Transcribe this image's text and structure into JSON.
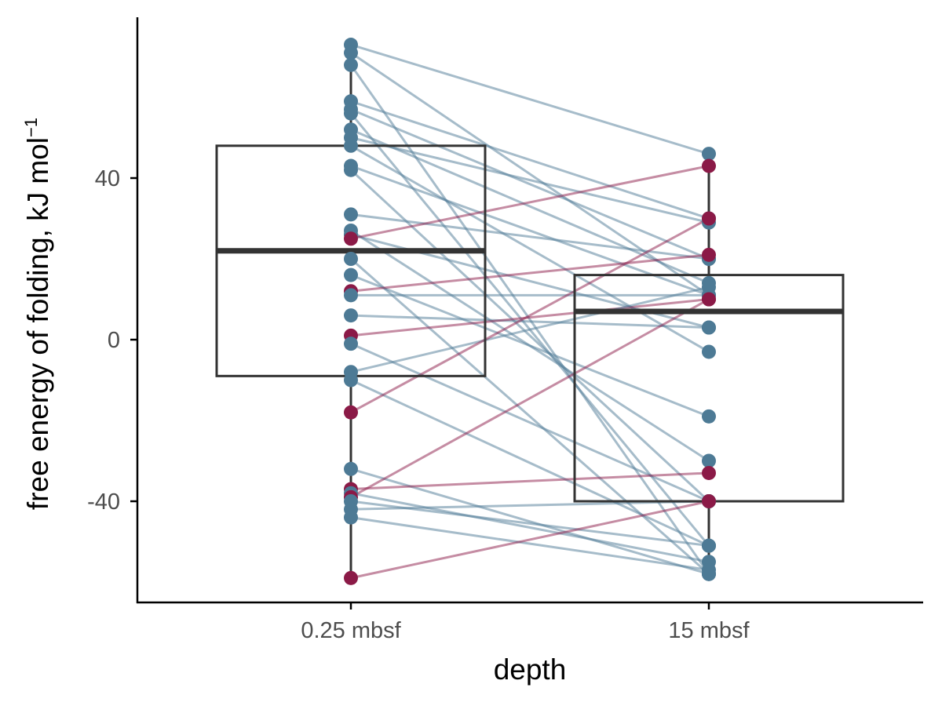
{
  "chart_data": {
    "type": "box-with-paired-points",
    "xlabel": "depth",
    "ylabel": "free energy of folding, kJ mol",
    "ylabel_superscript": "−1",
    "categories": [
      "0.25 mbsf",
      "15 mbsf"
    ],
    "ylim": [
      -65,
      80
    ],
    "yticks": [
      -40,
      0,
      40
    ],
    "ytick_labels": [
      "-40",
      "0",
      "40"
    ],
    "grid": false,
    "boxes": [
      {
        "category": "0.25 mbsf",
        "whisker_low": -59,
        "q1": -9,
        "median": 22,
        "q3": 48,
        "whisker_high": 73
      },
      {
        "category": "15 mbsf",
        "whisker_low": -58,
        "q1": -40,
        "median": 7,
        "q3": 16,
        "whisker_high": 46
      }
    ],
    "colors": {
      "blue": "#4d7a95",
      "red": "#8b1a47",
      "box": "#333333",
      "axis": "#000000"
    },
    "pairs": [
      {
        "from": 73,
        "to": 46,
        "group": "blue"
      },
      {
        "from": 71,
        "to": 11,
        "group": "blue"
      },
      {
        "from": 68,
        "to": -58,
        "group": "blue"
      },
      {
        "from": 59,
        "to": 30,
        "group": "blue"
      },
      {
        "from": 57,
        "to": 20,
        "group": "blue"
      },
      {
        "from": 56,
        "to": -51,
        "group": "blue"
      },
      {
        "from": 52,
        "to": 14,
        "group": "blue"
      },
      {
        "from": 50,
        "to": 29,
        "group": "blue"
      },
      {
        "from": 48,
        "to": -3,
        "group": "blue"
      },
      {
        "from": 43,
        "to": 11,
        "group": "blue"
      },
      {
        "from": 42,
        "to": -40,
        "group": "blue"
      },
      {
        "from": 31,
        "to": 20,
        "group": "blue"
      },
      {
        "from": 27,
        "to": -30,
        "group": "blue"
      },
      {
        "from": 26,
        "to": 3,
        "group": "blue"
      },
      {
        "from": 25,
        "to": 43,
        "group": "red"
      },
      {
        "from": 20,
        "to": -58,
        "group": "blue"
      },
      {
        "from": 16,
        "to": -19,
        "group": "blue"
      },
      {
        "from": 12,
        "to": 21,
        "group": "red"
      },
      {
        "from": 11,
        "to": 11,
        "group": "blue"
      },
      {
        "from": 6,
        "to": 3,
        "group": "blue"
      },
      {
        "from": 1,
        "to": 10,
        "group": "red"
      },
      {
        "from": -1,
        "to": -40,
        "group": "blue"
      },
      {
        "from": -8,
        "to": 13,
        "group": "blue"
      },
      {
        "from": -10,
        "to": -51,
        "group": "blue"
      },
      {
        "from": -18,
        "to": 30,
        "group": "red"
      },
      {
        "from": -32,
        "to": -58,
        "group": "blue"
      },
      {
        "from": -37,
        "to": -33,
        "group": "red"
      },
      {
        "from": -38,
        "to": -55,
        "group": "blue"
      },
      {
        "from": -39,
        "to": 10,
        "group": "red"
      },
      {
        "from": -40,
        "to": -51,
        "group": "blue"
      },
      {
        "from": -42,
        "to": -40,
        "group": "blue"
      },
      {
        "from": -44,
        "to": -57,
        "group": "blue"
      },
      {
        "from": -59,
        "to": -40,
        "group": "red"
      }
    ]
  }
}
